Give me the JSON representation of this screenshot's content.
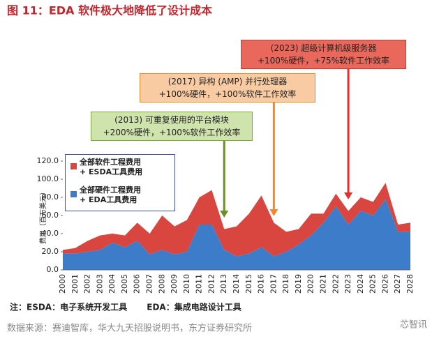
{
  "chart_data": {
    "type": "stacked-area",
    "title": "图 11：EDA 软件极大地降低了设计成本",
    "y_label": "费用（百万美元）",
    "categories": [
      "2000",
      "2001",
      "2002",
      "2003",
      "2004",
      "2005",
      "2006",
      "2007",
      "2008",
      "2009",
      "2010",
      "2011",
      "2012",
      "2013",
      "2014",
      "2015",
      "2016",
      "2017",
      "2018",
      "2019",
      "2020",
      "2021",
      "2022",
      "2023",
      "2024",
      "2025",
      "2026",
      "2027",
      "2028"
    ],
    "series": [
      {
        "name": "全部硬件工程费用\n+ EDA工具费用",
        "color": "#3d7cc9",
        "values": [
          18,
          18,
          20,
          22,
          30,
          25,
          32,
          17,
          22,
          17,
          20,
          50,
          50,
          22,
          15,
          18,
          25,
          15,
          20,
          28,
          38,
          52,
          70,
          50,
          65,
          60,
          78,
          42,
          42
        ]
      },
      {
        "name": "全部软件工程费用\n+ ESDA工具费用",
        "color": "#d8463f",
        "values": [
          4,
          6,
          12,
          16,
          10,
          13,
          20,
          23,
          38,
          31,
          35,
          30,
          38,
          23,
          33,
          44,
          57,
          37,
          22,
          17,
          24,
          10,
          14,
          15,
          15,
          15,
          18,
          8,
          10
        ]
      }
    ],
    "ylim": [
      0,
      120
    ],
    "yticks": [
      {
        "value": 0,
        "label": "0.0"
      },
      {
        "value": 20,
        "label": "20.0"
      },
      {
        "value": 40,
        "label": "40.0"
      },
      {
        "value": 60,
        "label": "60.0"
      },
      {
        "value": 80,
        "label": "80.0"
      },
      {
        "value": 100,
        "label": "100.0"
      },
      {
        "value": 120,
        "label": "120.0"
      }
    ],
    "annotations": [
      {
        "text": "(2013) 可重复使用的平台模块\n+200%硬件，+100%软件工作效率",
        "color": "#6b8f2a"
      },
      {
        "text": "(2017) 异构 (AMP) 并行处理器\n+100%硬件，+100%软件工作效率",
        "color": "#ef8a2c"
      },
      {
        "text": "(2023) 超级计算机级服务器\n+100%硬件，+75%软件工作效率",
        "color": "#e3302a"
      }
    ],
    "note": "注：ESDA：电子系统开发工具　　 EDA：集成电路设计工具",
    "source": "数据来源：赛迪智库，华大九天招股说明书，东方证券研究所",
    "watermark": "芯智讯"
  }
}
